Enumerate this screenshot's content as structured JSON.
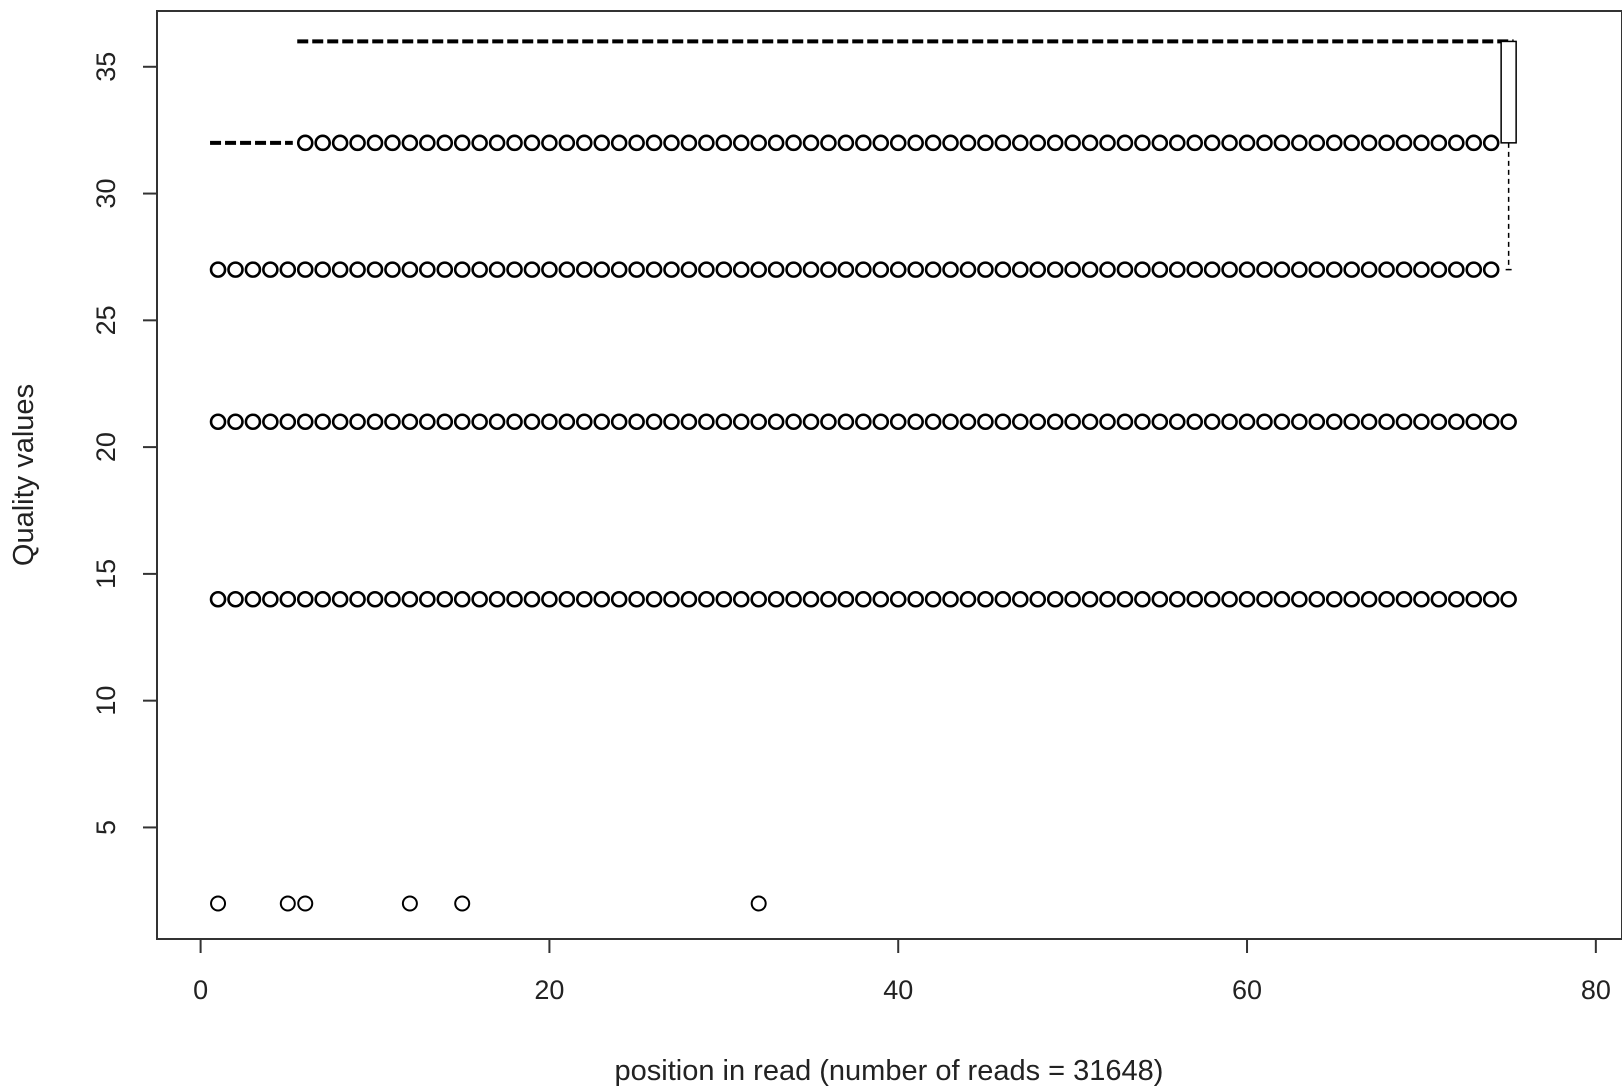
{
  "chart_data": {
    "type": "boxplot",
    "xlabel": "position in read (number of reads = 31648)",
    "ylabel": "Quality values",
    "xlim": [
      -2.5,
      81.5
    ],
    "ylim": [
      0.6,
      37.2
    ],
    "xticks": [
      0,
      20,
      40,
      60,
      80
    ],
    "yticks": [
      5,
      10,
      15,
      20,
      25,
      30,
      35
    ],
    "positions": {
      "start": 1,
      "end": 75
    },
    "outlier_levels": [
      {
        "y": 32,
        "from": 6,
        "to": 74
      },
      {
        "y": 27,
        "from": 1,
        "to": 74
      },
      {
        "y": 21,
        "from": 1,
        "to": 75
      },
      {
        "y": 14,
        "from": 1,
        "to": 75
      }
    ],
    "low_outliers": {
      "y": 2,
      "x": [
        1,
        5,
        6,
        12,
        15,
        32
      ]
    },
    "median_segments": [
      {
        "y": 36,
        "from": 6,
        "to": 75
      },
      {
        "y": 32,
        "from": 1,
        "to": 5
      }
    ],
    "last_box": {
      "x": 75,
      "q1": 32,
      "median": 36,
      "q3": 36,
      "whisker_low": 27,
      "whisker_high": 36
    },
    "grid": false,
    "legend": "none"
  }
}
